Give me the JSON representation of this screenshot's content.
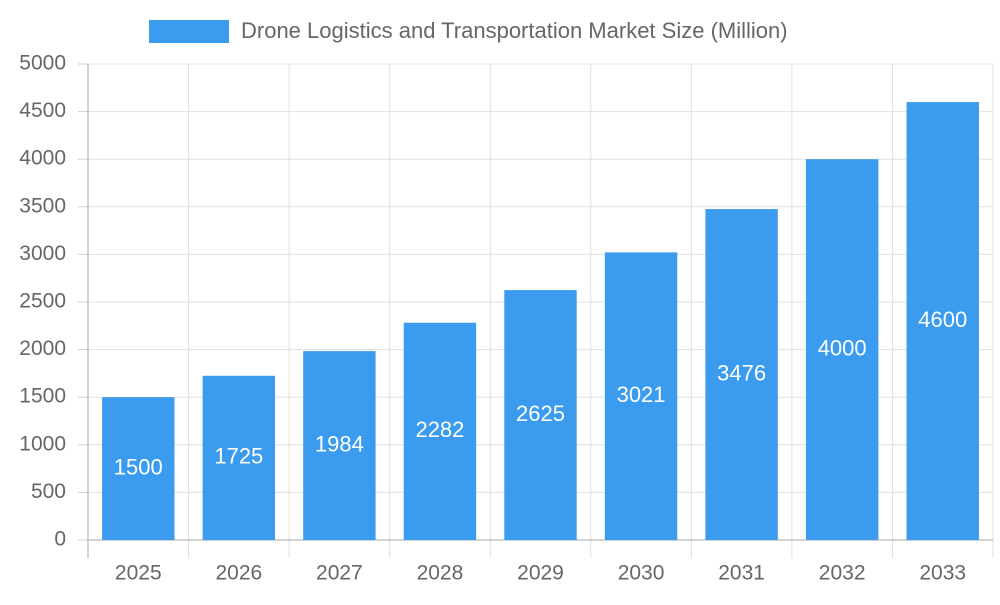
{
  "chart_data": {
    "type": "bar",
    "series": [
      {
        "name": "Drone Logistics and Transportation Market Size (Million)",
        "color": "#3a9bef",
        "values": [
          1500,
          1725,
          1984,
          2282,
          2625,
          3021,
          3476,
          4000,
          4600
        ]
      }
    ],
    "categories": [
      "2025",
      "2026",
      "2027",
      "2028",
      "2029",
      "2030",
      "2031",
      "2032",
      "2033"
    ],
    "ylim": [
      0,
      5000
    ],
    "yticks": [
      0,
      500,
      1000,
      1500,
      2000,
      2500,
      3000,
      3500,
      4000,
      4500,
      5000
    ],
    "grid": true,
    "legend": "top"
  }
}
